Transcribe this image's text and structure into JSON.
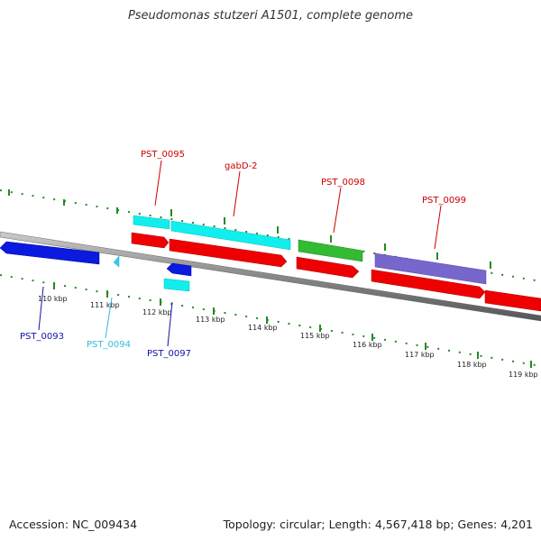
{
  "title": "Pseudomonas stutzeri A1501, complete genome",
  "footer": {
    "accession": "Accession: NC_009434",
    "summary": "Topology: circular; Length: 4,567,418 bp; Genes: 4,201"
  },
  "colors": {
    "backbone": "#888888",
    "ticks": "#228b22",
    "cds": "#ee0000",
    "gene_blue": "#0a1adf",
    "gene_cyan": "#11eeee",
    "gene_green": "#33bb33",
    "gene_purple": "#7766cc"
  },
  "tick_labels": [
    "110 kbp",
    "111 kbp",
    "112 kbp",
    "113 kbp",
    "114 kbp",
    "115 kbp",
    "116 kbp",
    "117 kbp",
    "118 kbp",
    "119 kbp"
  ],
  "gene_labels": {
    "pst_0095": "PST_0095",
    "gabd2": "gabD-2",
    "pst_0098": "PST_0098",
    "pst_0099": "PST_0099",
    "pst_0093": "PST_0093",
    "pst_0094": "PST_0094",
    "pst_0097": "PST_0097"
  }
}
